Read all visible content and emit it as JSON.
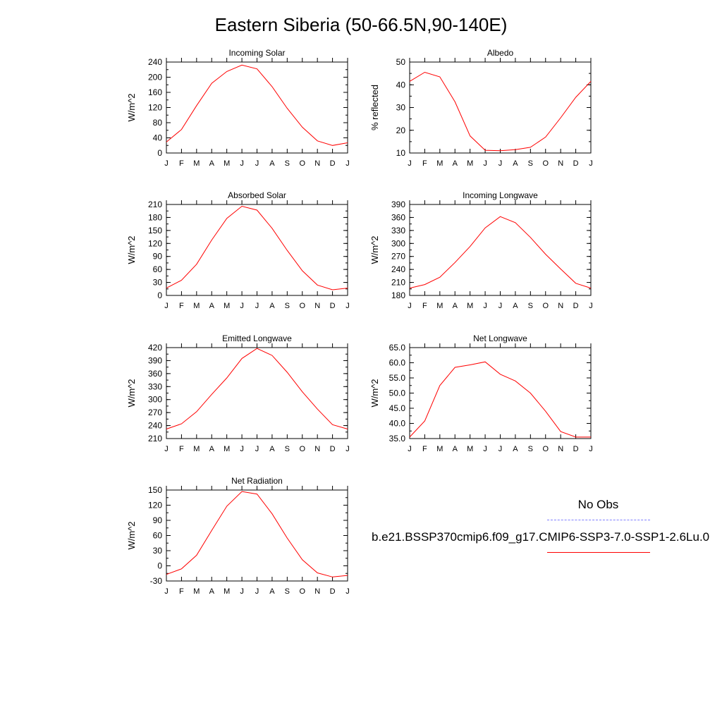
{
  "title": "Eastern Siberia (50-66.5N,90-140E)",
  "months": [
    "J",
    "F",
    "M",
    "A",
    "M",
    "J",
    "J",
    "A",
    "S",
    "O",
    "N",
    "D",
    "J"
  ],
  "line_color": "#ff0000",
  "obs_color": "#7f7fff",
  "legend": {
    "obs_label": "No Obs",
    "model_label": "b.e21.BSSP370cmip6.f09_g17.CMIP6-SSP3-7.0-SSP1-2.6Lu.0"
  },
  "chart_data": [
    {
      "type": "line",
      "title": "Incoming Solar",
      "ylabel": "W/m^2",
      "ylim": [
        0,
        240
      ],
      "yticks": [
        "0",
        "40",
        "80",
        "120",
        "160",
        "200",
        "240"
      ],
      "yticks_values": [
        0,
        40,
        80,
        120,
        160,
        200,
        240
      ],
      "y_minor_step": 20,
      "values": [
        29,
        62,
        125,
        184,
        215,
        232,
        222,
        175,
        118,
        68,
        32,
        20,
        27
      ]
    },
    {
      "type": "line",
      "title": "Albedo",
      "ylabel": "% reflected",
      "ylim": [
        10,
        50
      ],
      "yticks": [
        "10",
        "20",
        "30",
        "40",
        "50"
      ],
      "yticks_values": [
        10,
        20,
        30,
        40,
        50
      ],
      "y_minor_step": 5,
      "values": [
        41.5,
        45.5,
        43.5,
        32.5,
        17.5,
        11.2,
        11.0,
        11.5,
        12.5,
        17.0,
        25.5,
        34.5,
        41.5
      ]
    },
    {
      "type": "line",
      "title": "Absorbed Solar",
      "ylabel": "W/m^2",
      "ylim": [
        0,
        210
      ],
      "yticks": [
        "0",
        "30",
        "60",
        "90",
        "120",
        "150",
        "180",
        "210"
      ],
      "yticks_values": [
        0,
        30,
        60,
        90,
        120,
        150,
        180,
        210
      ],
      "y_minor_step": 15,
      "values": [
        17,
        35,
        72,
        128,
        178,
        206,
        197,
        155,
        104,
        57,
        24,
        13,
        17
      ]
    },
    {
      "type": "line",
      "title": "Incoming Longwave",
      "ylabel": "W/m^2",
      "ylim": [
        180,
        390
      ],
      "yticks": [
        "180",
        "210",
        "240",
        "270",
        "300",
        "330",
        "360",
        "390"
      ],
      "yticks_values": [
        180,
        210,
        240,
        270,
        300,
        330,
        360,
        390
      ],
      "y_minor_step": 15,
      "values": [
        197,
        205,
        222,
        256,
        293,
        336,
        362,
        348,
        314,
        275,
        241,
        208,
        197
      ]
    },
    {
      "type": "line",
      "title": "Emitted Longwave",
      "ylabel": "W/m^2",
      "ylim": [
        210,
        420
      ],
      "yticks": [
        "210",
        "240",
        "270",
        "300",
        "330",
        "360",
        "390",
        "420"
      ],
      "yticks_values": [
        210,
        240,
        270,
        300,
        330,
        360,
        390,
        420
      ],
      "y_minor_step": 15,
      "values": [
        232,
        244,
        272,
        312,
        350,
        395,
        418,
        402,
        363,
        318,
        278,
        242,
        232
      ]
    },
    {
      "type": "line",
      "title": "Net Longwave",
      "ylabel": "W/m^2",
      "ylim": [
        35,
        65
      ],
      "yticks": [
        "35.0",
        "40.0",
        "45.0",
        "50.0",
        "55.0",
        "60.0",
        "65.0"
      ],
      "yticks_values": [
        35,
        40,
        45,
        50,
        55,
        60,
        65
      ],
      "y_minor_step": 2.5,
      "values": [
        35.5,
        40.8,
        52.5,
        58.5,
        59.3,
        60.3,
        56.2,
        54.0,
        50.0,
        44.0,
        37.3,
        35.5,
        35.5
      ]
    },
    {
      "type": "line",
      "title": "Net Radiation",
      "ylabel": "W/m^2",
      "ylim": [
        -30,
        150
      ],
      "yticks": [
        "-30",
        "0",
        "30",
        "60",
        "90",
        "120",
        "150"
      ],
      "yticks_values": [
        -30,
        0,
        30,
        60,
        90,
        120,
        150
      ],
      "y_minor_step": 15,
      "values": [
        -17,
        -6,
        21,
        70,
        118,
        147,
        142,
        103,
        55,
        12,
        -14,
        -22,
        -19
      ]
    }
  ]
}
